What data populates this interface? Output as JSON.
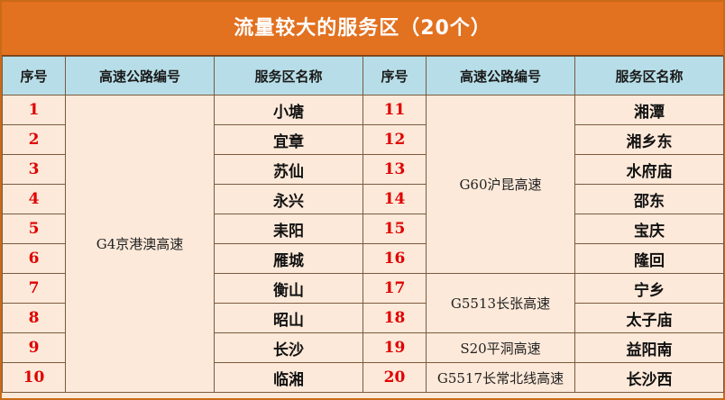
{
  "title": "流量较大的服务区（20个）",
  "headers": {
    "seq": "序号",
    "road": "高速公路编号",
    "area": "服务区名称"
  },
  "left": {
    "road": "G4京港澳高速",
    "rows": [
      {
        "seq": "1",
        "area": "小塘"
      },
      {
        "seq": "2",
        "area": "宜章"
      },
      {
        "seq": "3",
        "area": "苏仙"
      },
      {
        "seq": "4",
        "area": "永兴"
      },
      {
        "seq": "5",
        "area": "耒阳"
      },
      {
        "seq": "6",
        "area": "雁城"
      },
      {
        "seq": "7",
        "area": "衡山"
      },
      {
        "seq": "8",
        "area": "昭山"
      },
      {
        "seq": "9",
        "area": "长沙"
      },
      {
        "seq": "10",
        "area": "临湘"
      }
    ]
  },
  "right": {
    "roads": [
      "G60沪昆高速",
      "G5513长张高速",
      "S20平洞高速",
      "G5517长常北线高速"
    ],
    "rows": [
      {
        "seq": "11",
        "area": "湘潭"
      },
      {
        "seq": "12",
        "area": "湘乡东"
      },
      {
        "seq": "13",
        "area": "水府庙"
      },
      {
        "seq": "14",
        "area": "邵东"
      },
      {
        "seq": "15",
        "area": "宝庆"
      },
      {
        "seq": "16",
        "area": "隆回"
      },
      {
        "seq": "17",
        "area": "宁乡"
      },
      {
        "seq": "18",
        "area": "太子庙"
      },
      {
        "seq": "19",
        "area": "益阳南"
      },
      {
        "seq": "20",
        "area": "长沙西"
      }
    ]
  },
  "colors": {
    "title_bg": "#e27120",
    "header_bg": "#b7dee8",
    "cell_bg": "#fde9d9",
    "seq_text": "#e00000"
  }
}
